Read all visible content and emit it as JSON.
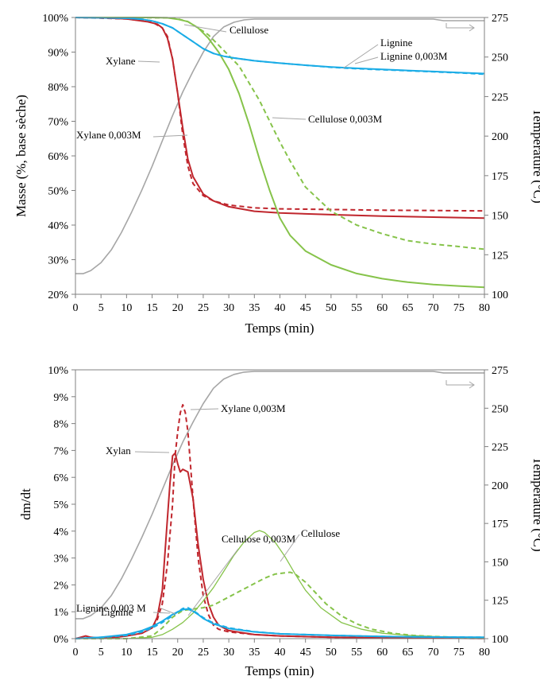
{
  "chart_data": [
    {
      "type": "line",
      "xlabel": "Temps (min)",
      "ylabel": "Masse (%, base sèche)",
      "y2label": "Température (°C)",
      "xlim": [
        0,
        80
      ],
      "ylim": [
        20,
        100
      ],
      "y2lim": [
        100,
        275
      ],
      "xticks": [
        "0",
        "5",
        "10",
        "15",
        "20",
        "25",
        "30",
        "35",
        "40",
        "45",
        "50",
        "55",
        "60",
        "65",
        "70",
        "75",
        "80"
      ],
      "yticks": [
        "20%",
        "30%",
        "40%",
        "50%",
        "60%",
        "70%",
        "80%",
        "90%",
        "100%"
      ],
      "y2ticks": [
        "100",
        "125",
        "150",
        "175",
        "200",
        "225",
        "250",
        "275"
      ],
      "grid": false,
      "legend": "none",
      "series": [
        {
          "name": "Xylane",
          "color": "#c0262d",
          "dash": false,
          "axis": "left",
          "x": [
            0,
            5,
            10,
            14,
            16,
            17,
            18,
            19,
            20,
            21,
            22,
            23,
            25,
            27,
            30,
            35,
            40,
            50,
            60,
            70,
            80
          ],
          "y": [
            100,
            99.9,
            99.6,
            98.8,
            98.1,
            97,
            94,
            88,
            78,
            68,
            59,
            54,
            49,
            47,
            45.3,
            44,
            43.5,
            43,
            42.6,
            42.3,
            42
          ]
        },
        {
          "name": "Xylane 0,003M",
          "color": "#c0262d",
          "dash": true,
          "axis": "left",
          "x": [
            0,
            10,
            15,
            17,
            18,
            19,
            20,
            21,
            22,
            23,
            25,
            27,
            30,
            35,
            40,
            50,
            60,
            70,
            80
          ],
          "y": [
            100,
            99.6,
            98.7,
            97,
            94.5,
            88,
            78,
            66,
            57,
            52,
            48.5,
            47,
            45.8,
            45,
            44.7,
            44.5,
            44.3,
            44.2,
            44.1
          ]
        },
        {
          "name": "Cellulose",
          "color": "#86c34a",
          "dash": false,
          "axis": "left",
          "x": [
            0,
            15,
            18,
            20,
            22,
            24,
            26,
            28,
            30,
            32,
            34,
            36,
            38,
            40,
            42,
            45,
            50,
            55,
            60,
            65,
            70,
            75,
            80
          ],
          "y": [
            100,
            100,
            99.9,
            99.5,
            98.8,
            97,
            94,
            90,
            85,
            78,
            69,
            59,
            50,
            42,
            37,
            32.5,
            28.5,
            26,
            24.5,
            23.5,
            22.8,
            22.4,
            22
          ]
        },
        {
          "name": "Cellulose 0,003M",
          "color": "#86c34a",
          "dash": true,
          "axis": "left",
          "x": [
            0,
            18,
            20,
            22,
            24,
            26,
            28,
            30,
            32,
            34,
            36,
            38,
            40,
            42,
            45,
            50,
            55,
            60,
            65,
            70,
            75,
            80
          ],
          "y": [
            100,
            99.9,
            99.6,
            98.8,
            97,
            95,
            92,
            89,
            86,
            81,
            76,
            70,
            64,
            58.5,
            51,
            44,
            40,
            37.5,
            35.5,
            34.5,
            33.8,
            33
          ]
        },
        {
          "name": "Lignine",
          "color": "#1aace6",
          "dash": false,
          "axis": "left",
          "x": [
            0,
            5,
            10,
            13,
            15,
            17,
            19,
            21,
            23,
            25,
            27,
            29,
            31,
            35,
            40,
            45,
            50,
            55,
            60,
            65,
            70,
            75,
            80
          ],
          "y": [
            100,
            99.9,
            99.8,
            99.5,
            99,
            98.2,
            97,
            95,
            93,
            91,
            89.6,
            88.8,
            88.3,
            87.5,
            86.8,
            86.2,
            85.7,
            85.3,
            85,
            84.7,
            84.4,
            84.1,
            83.8
          ]
        },
        {
          "name": "Lignine 0,003M",
          "color": "#1aace6",
          "dash": true,
          "axis": "left",
          "x": [
            0,
            5,
            10,
            13,
            15,
            17,
            19,
            21,
            23,
            25,
            27,
            29,
            31,
            35,
            40,
            45,
            50,
            55,
            60,
            65,
            70,
            75,
            80
          ],
          "y": [
            100,
            99.9,
            99.8,
            99.5,
            99,
            98.2,
            97,
            95,
            93,
            91,
            89.6,
            88.8,
            88.3,
            87.5,
            86.8,
            86.2,
            85.6,
            85.2,
            84.9,
            84.6,
            84.3,
            84,
            83.6
          ]
        },
        {
          "name": "Température",
          "color": "#a6a6a6",
          "dash": false,
          "axis": "right",
          "x": [
            0,
            1.5,
            3,
            5,
            7,
            9,
            11,
            13,
            15,
            17,
            19,
            21,
            23,
            25,
            27,
            29,
            31,
            33,
            35,
            40,
            50,
            60,
            70,
            72,
            80
          ],
          "y": [
            113,
            113,
            115,
            120,
            128,
            139,
            152,
            166,
            181,
            197,
            213,
            228,
            241,
            253,
            263,
            269,
            272,
            273.5,
            274,
            274,
            274,
            274,
            274,
            273,
            273
          ]
        }
      ],
      "annotations": [
        "Cellulose",
        "Lignine",
        "Lignine 0,003M",
        "Xylane",
        "Cellulose 0,003M",
        "Xylane 0,003M"
      ]
    },
    {
      "type": "line",
      "xlabel": "Temps (min)",
      "ylabel": "dm/dt",
      "y2label": "Température (°C)",
      "xlim": [
        0,
        80
      ],
      "ylim": [
        0,
        10
      ],
      "y2lim": [
        100,
        275
      ],
      "xticks": [
        "0",
        "5",
        "10",
        "15",
        "20",
        "25",
        "30",
        "35",
        "40",
        "45",
        "50",
        "55",
        "60",
        "65",
        "70",
        "75",
        "80"
      ],
      "yticks": [
        "0%",
        "1%",
        "2%",
        "3%",
        "4%",
        "5%",
        "6%",
        "7%",
        "8%",
        "9%",
        "10%"
      ],
      "y2ticks": [
        "100",
        "125",
        "150",
        "175",
        "200",
        "225",
        "250",
        "275"
      ],
      "grid": false,
      "legend": "none",
      "series": [
        {
          "name": "Xylan",
          "color": "#c0262d",
          "dash": false,
          "axis": "left",
          "x": [
            0,
            1,
            2,
            3,
            5,
            8,
            10,
            13,
            15,
            16,
            17,
            18,
            18.5,
            19,
            19.5,
            20,
            20.5,
            21,
            22,
            23,
            24,
            25,
            26,
            27,
            28,
            30,
            35,
            40,
            50,
            60,
            70,
            80
          ],
          "y": [
            0,
            0.05,
            0.1,
            0.05,
            0.02,
            0.05,
            0.1,
            0.2,
            0.4,
            0.8,
            1.8,
            4.5,
            5.8,
            6.8,
            6.9,
            6.5,
            6.2,
            6.3,
            6.2,
            5.2,
            3.5,
            2.2,
            1.3,
            0.8,
            0.5,
            0.3,
            0.15,
            0.1,
            0.05,
            0.03,
            0.02,
            0.01
          ]
        },
        {
          "name": "Xylane 0,003M",
          "color": "#c0262d",
          "dash": true,
          "axis": "left",
          "x": [
            0,
            5,
            10,
            13,
            15,
            16,
            17,
            18,
            19,
            19.5,
            20,
            20.5,
            21,
            21.5,
            22,
            22.5,
            23,
            24,
            25,
            26,
            27,
            28,
            30,
            35,
            40,
            50,
            60,
            70,
            80
          ],
          "y": [
            0,
            0.02,
            0.1,
            0.2,
            0.4,
            0.7,
            1.3,
            2.8,
            5,
            6.8,
            7.7,
            8.4,
            8.7,
            8.4,
            7.7,
            6.5,
            5.2,
            3,
            1.6,
            0.9,
            0.5,
            0.35,
            0.25,
            0.15,
            0.1,
            0.05,
            0.03,
            0.02,
            0.01
          ]
        },
        {
          "name": "Cellulose",
          "color": "#86c34a",
          "dash": false,
          "axis": "left",
          "x": [
            0,
            10,
            15,
            17,
            19,
            21,
            23,
            25,
            27,
            29,
            31,
            33,
            35,
            36,
            37,
            39,
            41,
            43,
            45,
            48,
            52,
            56,
            60,
            65,
            70,
            75,
            80
          ],
          "y": [
            0,
            0,
            0.05,
            0.15,
            0.35,
            0.6,
            0.95,
            1.4,
            1.9,
            2.5,
            3.1,
            3.6,
            3.95,
            4.02,
            3.95,
            3.6,
            3.05,
            2.4,
            1.8,
            1.15,
            0.6,
            0.35,
            0.2,
            0.12,
            0.08,
            0.05,
            0.03
          ]
        },
        {
          "name": "Cellulose 0,003M",
          "color": "#86c34a",
          "dash": true,
          "axis": "left",
          "x": [
            0,
            10,
            15,
            17,
            19,
            21,
            23,
            25,
            27,
            29,
            31,
            33,
            35,
            37,
            39,
            41,
            42,
            43,
            45,
            47,
            49,
            52,
            55,
            58,
            62,
            66,
            70,
            75,
            80
          ],
          "y": [
            0,
            0,
            0.1,
            0.4,
            0.8,
            1.05,
            1.1,
            1.15,
            1.25,
            1.45,
            1.65,
            1.85,
            2.05,
            2.25,
            2.4,
            2.45,
            2.47,
            2.4,
            2.1,
            1.7,
            1.3,
            0.85,
            0.55,
            0.35,
            0.2,
            0.12,
            0.08,
            0.05,
            0.03
          ]
        },
        {
          "name": "Lignine",
          "color": "#1aace6",
          "dash": false,
          "axis": "left",
          "x": [
            0,
            5,
            10,
            13,
            15,
            17,
            19,
            20,
            21,
            22,
            23,
            24,
            25,
            27,
            30,
            35,
            40,
            50,
            60,
            70,
            80
          ],
          "y": [
            0,
            0.05,
            0.15,
            0.3,
            0.45,
            0.65,
            0.9,
            1.0,
            1.08,
            1.1,
            1.02,
            0.9,
            0.75,
            0.55,
            0.38,
            0.25,
            0.18,
            0.12,
            0.08,
            0.06,
            0.05
          ]
        },
        {
          "name": "Lignine 0,003 M",
          "color": "#1aace6",
          "dash": true,
          "axis": "left",
          "x": [
            0,
            5,
            10,
            13,
            15,
            17,
            19,
            20,
            21,
            22,
            23,
            24,
            25,
            27,
            30,
            35,
            40,
            50,
            60,
            70,
            80
          ],
          "y": [
            0,
            0.05,
            0.12,
            0.25,
            0.4,
            0.6,
            0.85,
            1.0,
            1.12,
            1.15,
            1.05,
            0.92,
            0.78,
            0.58,
            0.4,
            0.26,
            0.18,
            0.12,
            0.08,
            0.06,
            0.05
          ]
        },
        {
          "name": "Température",
          "color": "#a6a6a6",
          "dash": false,
          "axis": "right",
          "x": [
            0,
            1.5,
            3,
            5,
            7,
            9,
            11,
            13,
            15,
            17,
            19,
            21,
            23,
            25,
            27,
            29,
            31,
            33,
            35,
            40,
            50,
            60,
            70,
            72,
            80
          ],
          "y": [
            113,
            113,
            115,
            120,
            128,
            139,
            152,
            166,
            181,
            197,
            213,
            228,
            241,
            253,
            263,
            269,
            272,
            273.5,
            274,
            274,
            274,
            274,
            274,
            273,
            273
          ]
        }
      ],
      "annotations": [
        "Xylane 0,003M",
        "Xylan",
        "Cellulose 0,003M",
        "Cellulose",
        "Lignine 0,003 M",
        "Lignine"
      ]
    }
  ]
}
